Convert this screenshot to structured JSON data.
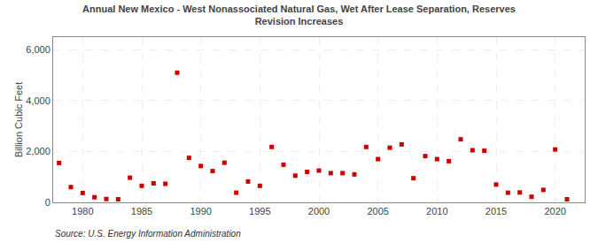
{
  "chart_data": {
    "type": "scatter",
    "title": "Annual New Mexico - West Nonassociated Natural Gas, Wet After Lease Separation, Reserves\nRevision Increases",
    "ylabel": "Billion Cubic Feet",
    "annotations": [
      "Source: U.S. Energy Information Administration"
    ],
    "color": "#cc0000",
    "marker": "square",
    "grid": true,
    "xlim": [
      1977.5,
      2022.5
    ],
    "ylim": [
      0,
      6500
    ],
    "xticks": [
      1980,
      1985,
      1990,
      1995,
      2000,
      2005,
      2010,
      2015,
      2020
    ],
    "yticks": [
      0,
      {
        "value": 2000,
        "label": "2,000"
      },
      {
        "value": 4000,
        "label": "4,000"
      },
      {
        "value": 6000,
        "label": "6,000"
      }
    ],
    "x": [
      1978,
      1979,
      1980,
      1981,
      1982,
      1983,
      1984,
      1985,
      1986,
      1987,
      1988,
      1989,
      1990,
      1991,
      1992,
      1993,
      1994,
      1995,
      1996,
      1997,
      1998,
      1999,
      2000,
      2001,
      2002,
      2003,
      2004,
      2005,
      2006,
      2007,
      2008,
      2009,
      2010,
      2011,
      2012,
      2013,
      2014,
      2015,
      2016,
      2017,
      2018,
      2019,
      2020,
      2021
    ],
    "values": [
      1550,
      600,
      370,
      200,
      130,
      120,
      970,
      650,
      750,
      730,
      5100,
      1750,
      1430,
      1230,
      1560,
      380,
      820,
      650,
      2180,
      1480,
      1050,
      1200,
      1250,
      1150,
      1150,
      1100,
      2180,
      1700,
      2150,
      2280,
      950,
      1820,
      1700,
      1620,
      2480,
      2050,
      2030,
      700,
      380,
      390,
      220,
      490,
      2080,
      120
    ]
  }
}
